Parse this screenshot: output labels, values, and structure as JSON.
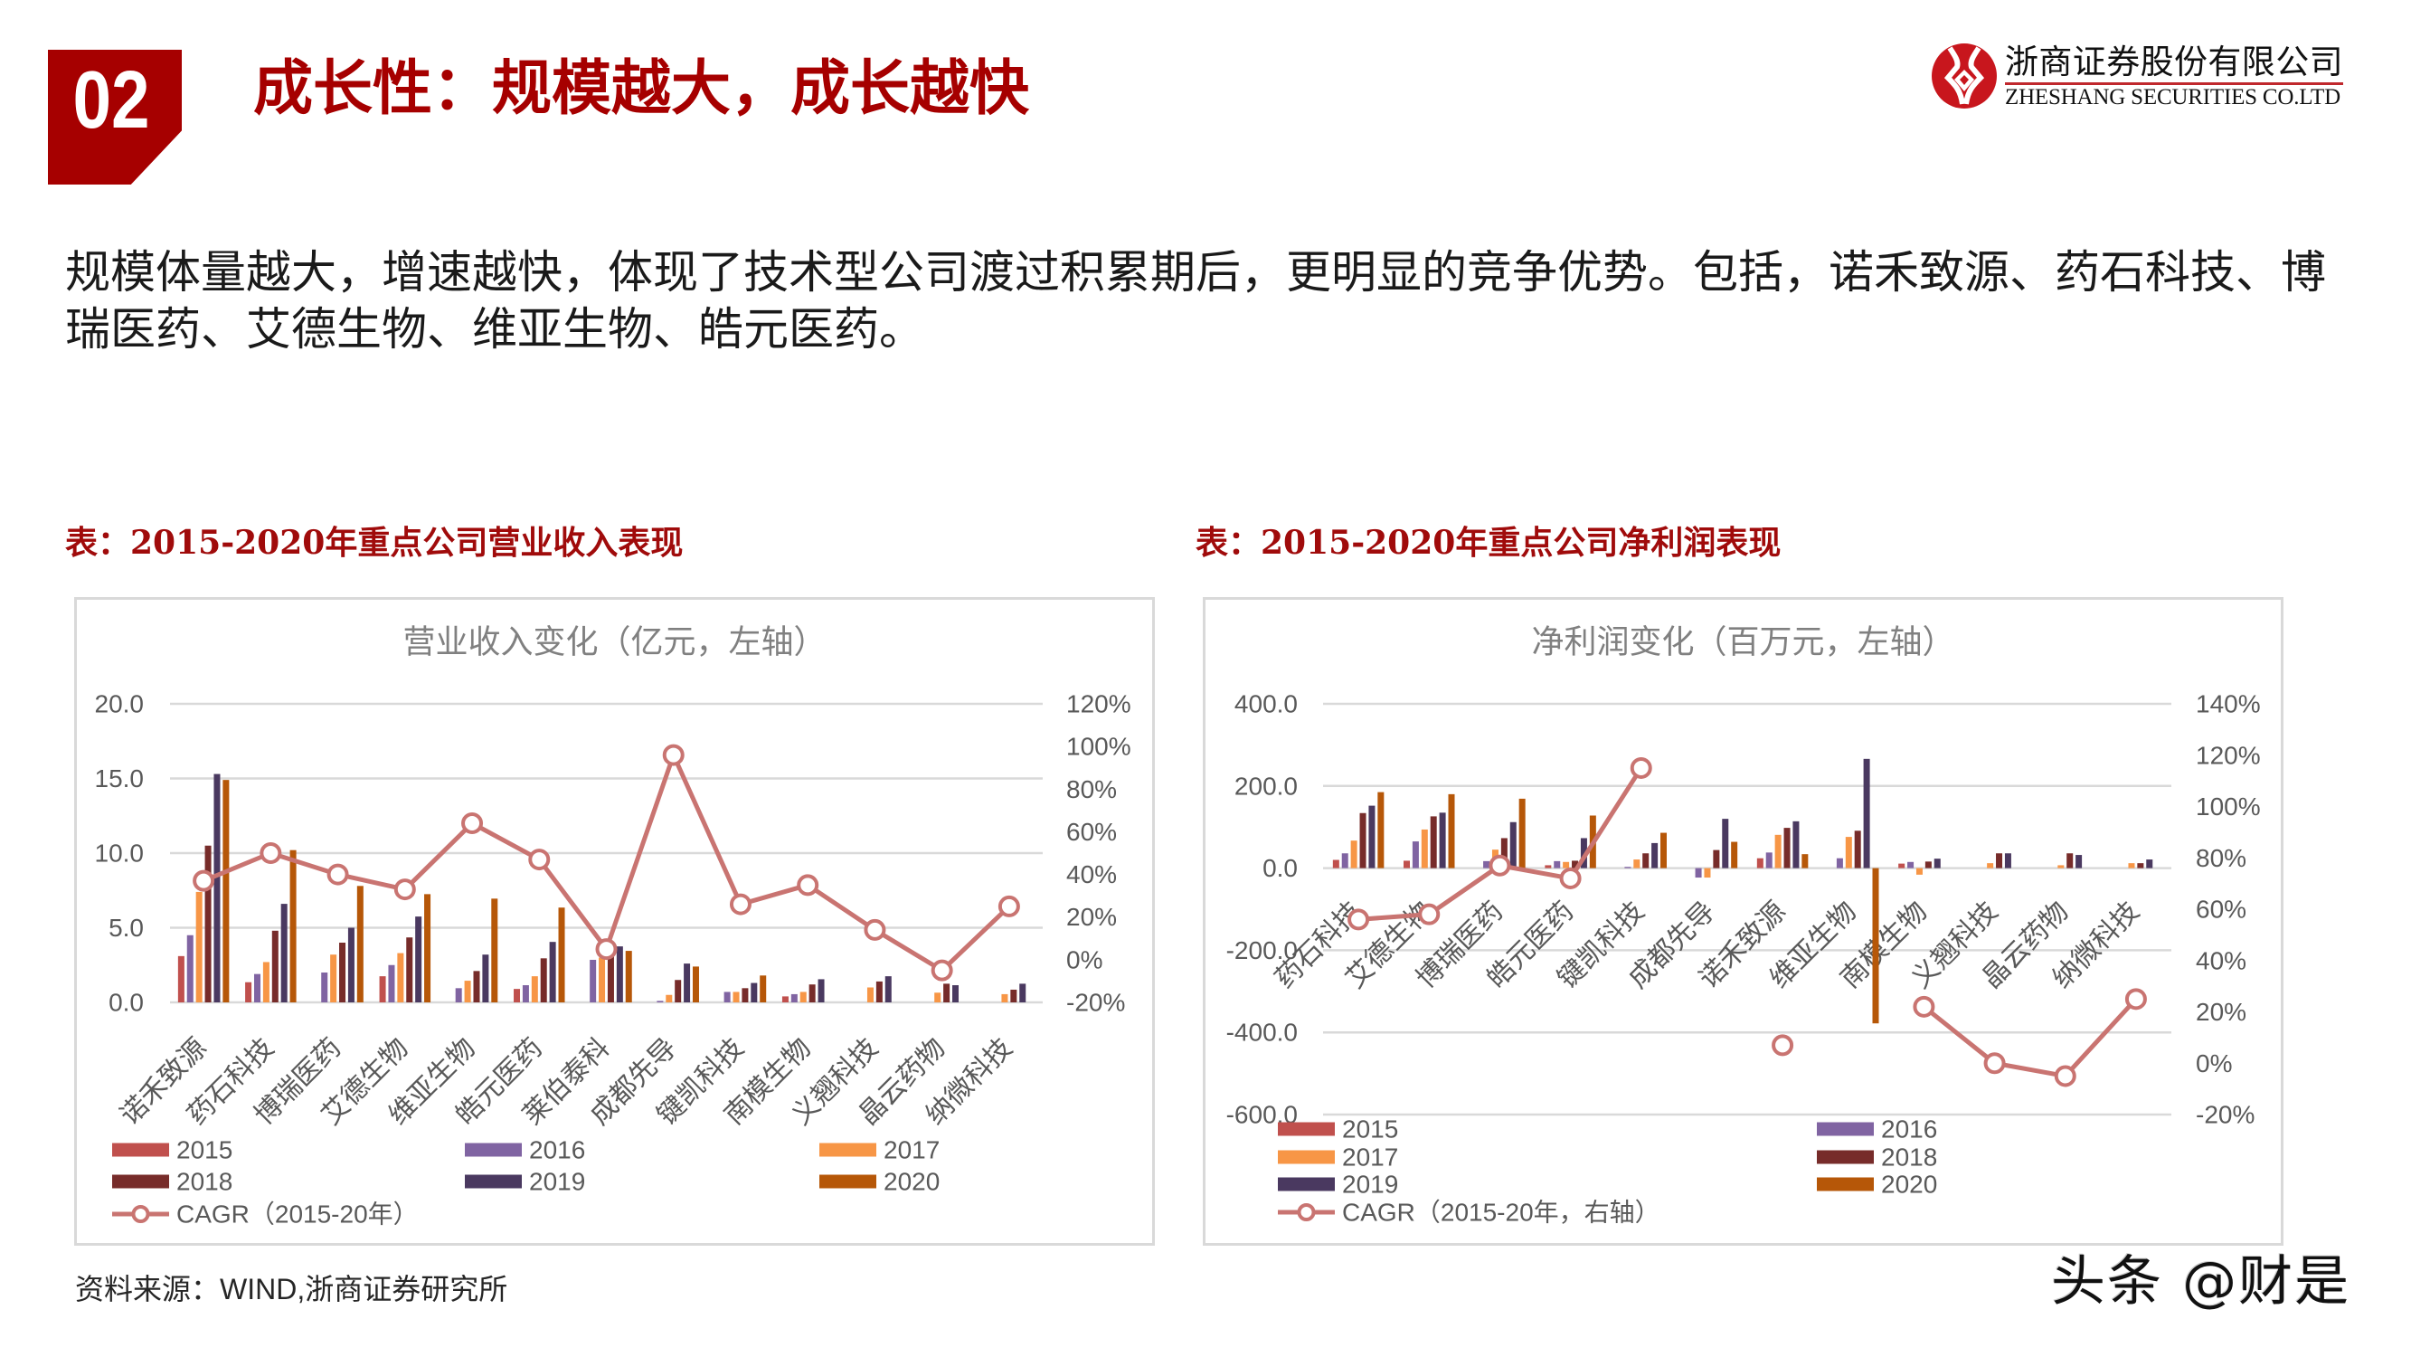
{
  "header": {
    "section_number": "02",
    "title": "成长性：规模越大，成长越快"
  },
  "logo": {
    "icon": "zheshang-logo-icon",
    "name_cn": "浙商证券股份有限公司",
    "name_en": "ZHESHANG SECURITIES CO.LTD"
  },
  "intro": {
    "text": "规模体量越大，增速越快，体现了技术型公司渡过积累期后，更明显的竞争优势。包括，诺禾致源、药石科技、博瑞医药、艾德生物、维亚生物、皓元医药。"
  },
  "colors": {
    "accent": "#A60000",
    "caption": "#A00B0B",
    "grid": "#D9D9D9",
    "axis_text": "#595959",
    "chart_title": "#808080"
  },
  "source_note": "资料来源：WIND,浙商证券研究所",
  "watermark": "头条 @财是",
  "chart_data": [
    {
      "id": "revenue",
      "type": "bar+line",
      "caption": "表：2015-2020年重点公司营业收入表现",
      "title": "营业收入变化（亿元，左轴）",
      "xlabel": "",
      "ylabel": "亿元",
      "categories": [
        "诺禾致源",
        "药石科技",
        "博瑞医药",
        "艾德生物",
        "维亚生物",
        "皓元医药",
        "莱伯泰科",
        "成都先导",
        "键凯科技",
        "南模生物",
        "义翘科技",
        "晶云药物",
        "纳微科技"
      ],
      "series": [
        {
          "name": "2015",
          "color": "#C0504D",
          "values": [
            3.1,
            1.35,
            null,
            1.75,
            null,
            0.9,
            null,
            null,
            null,
            0.4,
            null,
            null,
            null
          ]
        },
        {
          "name": "2016",
          "color": "#8064A2",
          "values": [
            4.5,
            1.9,
            2.0,
            2.5,
            0.95,
            1.15,
            2.85,
            0.1,
            0.7,
            0.55,
            null,
            null,
            null
          ]
        },
        {
          "name": "2017",
          "color": "#F79646",
          "values": [
            7.4,
            2.7,
            3.2,
            3.3,
            1.45,
            1.75,
            3.0,
            0.5,
            0.7,
            0.7,
            1.0,
            0.65,
            0.55
          ]
        },
        {
          "name": "2018",
          "color": "#772C2A",
          "values": [
            10.5,
            4.8,
            4.0,
            4.35,
            2.1,
            2.95,
            3.3,
            1.5,
            0.95,
            1.2,
            1.4,
            1.25,
            0.85
          ]
        },
        {
          "name": "2019",
          "color": "#4A3960",
          "values": [
            15.3,
            6.6,
            5.0,
            5.75,
            3.2,
            4.05,
            3.75,
            2.6,
            1.3,
            1.55,
            1.75,
            1.15,
            1.25
          ]
        },
        {
          "name": "2020",
          "color": "#B65708",
          "values": [
            14.9,
            10.2,
            7.8,
            7.25,
            6.95,
            6.35,
            3.45,
            2.4,
            1.8,
            null,
            null,
            null,
            null
          ]
        }
      ],
      "line": {
        "name": "CAGR（2015-20年）",
        "axis": "right",
        "color": "#C97471",
        "values": [
          37,
          50,
          40,
          33,
          64,
          47,
          5,
          96,
          26,
          35,
          14,
          -5,
          25
        ]
      },
      "y_left": {
        "min": 0,
        "max": 20,
        "ticks": [
          {
            "v": 0,
            "label": "0.0"
          },
          {
            "v": 5,
            "label": "5.0"
          },
          {
            "v": 10,
            "label": "10.0"
          },
          {
            "v": 15,
            "label": "15.0"
          },
          {
            "v": 20,
            "label": "20.0"
          }
        ]
      },
      "y_right": {
        "min": -20,
        "max": 120,
        "ticks": [
          {
            "v": -20,
            "label": "-20%"
          },
          {
            "v": 0,
            "label": "0%"
          },
          {
            "v": 20,
            "label": "20%"
          },
          {
            "v": 40,
            "label": "40%"
          },
          {
            "v": 60,
            "label": "60%"
          },
          {
            "v": 80,
            "label": "80%"
          },
          {
            "v": 100,
            "label": "100%"
          },
          {
            "v": 120,
            "label": "120%"
          }
        ]
      },
      "grid": true,
      "legend_position": "bottom",
      "legend_columns": 3
    },
    {
      "id": "net-profit",
      "type": "bar+line",
      "caption": "表：2015-2020年重点公司净利润表现",
      "title": "净利润变化（百万元，左轴）",
      "xlabel": "",
      "ylabel": "百万元",
      "categories": [
        "药石科技",
        "艾德生物",
        "博瑞医药",
        "皓元医药",
        "键凯科技",
        "成都先导",
        "诺禾致源",
        "维亚生物",
        "南模生物",
        "义翘科技",
        "晶云药物",
        "纳微科技"
      ],
      "series": [
        {
          "name": "2015",
          "color": "#C0504D",
          "values": [
            20,
            18,
            null,
            7,
            null,
            null,
            24,
            null,
            11,
            null,
            null,
            null
          ]
        },
        {
          "name": "2016",
          "color": "#8064A2",
          "values": [
            36,
            65,
            17,
            17,
            3,
            -23,
            38,
            24,
            15,
            null,
            null,
            null
          ]
        },
        {
          "name": "2017",
          "color": "#F79646",
          "values": [
            67,
            94,
            45,
            15,
            21,
            -23,
            81,
            76,
            -16,
            12,
            7,
            12
          ]
        },
        {
          "name": "2018",
          "color": "#772C2A",
          "values": [
            134,
            126,
            73,
            18,
            36,
            44,
            98,
            91,
            16,
            36,
            36,
            12
          ]
        },
        {
          "name": "2019",
          "color": "#4A3960",
          "values": [
            152,
            135,
            112,
            73,
            61,
            120,
            114,
            266,
            23,
            36,
            32,
            21
          ]
        },
        {
          "name": "2020",
          "color": "#B65708",
          "values": [
            185,
            180,
            169,
            128,
            86,
            64,
            34,
            -378,
            null,
            null,
            null,
            null
          ]
        }
      ],
      "line": {
        "name": "CAGR（2015-20年，右轴）",
        "axis": "right",
        "color": "#C97471",
        "values": [
          56,
          58,
          77,
          72,
          115,
          null,
          7,
          null,
          22,
          0,
          -5,
          25
        ]
      },
      "y_left": {
        "min": -600,
        "max": 400,
        "ticks": [
          {
            "v": -600,
            "label": "-600.0"
          },
          {
            "v": -400,
            "label": "-400.0"
          },
          {
            "v": -200,
            "label": "-200.0"
          },
          {
            "v": 0,
            "label": "0.0"
          },
          {
            "v": 200,
            "label": "200.0"
          },
          {
            "v": 400,
            "label": "400.0"
          }
        ]
      },
      "y_right": {
        "min": -20,
        "max": 140,
        "ticks": [
          {
            "v": -20,
            "label": "-20%"
          },
          {
            "v": 0,
            "label": "0%"
          },
          {
            "v": 20,
            "label": "20%"
          },
          {
            "v": 40,
            "label": "40%"
          },
          {
            "v": 60,
            "label": "60%"
          },
          {
            "v": 80,
            "label": "80%"
          },
          {
            "v": 100,
            "label": "100%"
          },
          {
            "v": 120,
            "label": "120%"
          },
          {
            "v": 140,
            "label": "140%"
          }
        ]
      },
      "grid": true,
      "legend_position": "bottom",
      "legend_columns": 2
    }
  ]
}
